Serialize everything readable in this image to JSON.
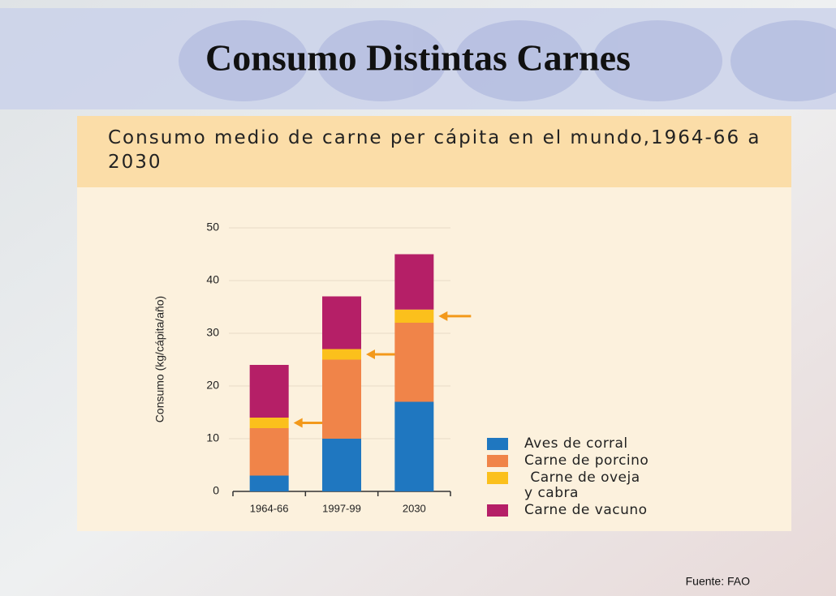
{
  "slide_title": "Consumo Distintas Carnes",
  "source": "Fuente: FAO",
  "chart_data": {
    "type": "stacked-bar",
    "title": "Consumo medio de carne per cápita en el mundo,1964-66 a 2030",
    "y_label": "Consumo (kg/cápita/año)",
    "categories": [
      "1964-66",
      "1997-99",
      "2030"
    ],
    "series": [
      {
        "name": "Aves de corral",
        "color": "#1f77c0",
        "values": [
          3,
          10,
          17
        ]
      },
      {
        "name": "Carne de porcino",
        "color": "#f08449",
        "values": [
          9,
          15,
          15
        ]
      },
      {
        "name": "Carne de oveja y cabra",
        "color": "#fbc01c",
        "values": [
          2,
          2,
          2.5
        ]
      },
      {
        "name": "Carne de vacuno",
        "color": "#b51f67",
        "values": [
          10,
          10,
          10.5
        ]
      }
    ],
    "ylim": [
      0,
      50
    ],
    "yticks": [
      0,
      10,
      20,
      30,
      40,
      50
    ],
    "grid": true
  }
}
